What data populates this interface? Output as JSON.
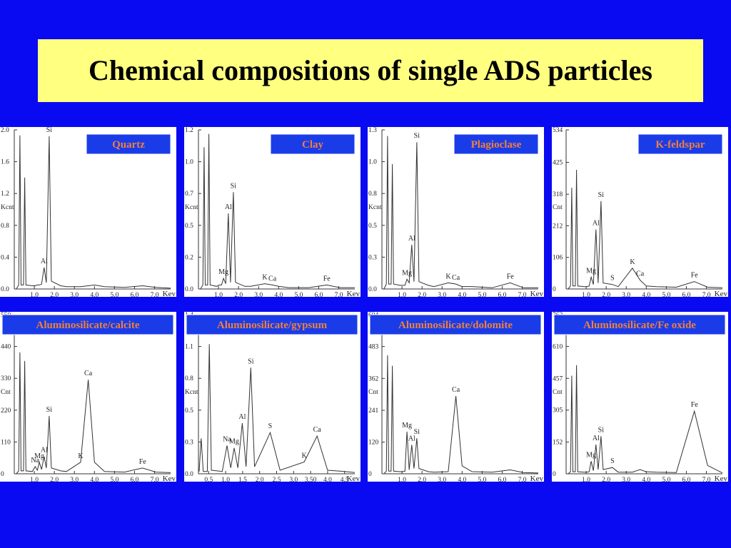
{
  "title": "Chemical compositions of single ADS particles",
  "chart_data": [
    {
      "type": "line",
      "title": "Quartz",
      "y_label": "Kcnt",
      "x_label": "Kev",
      "color": "#333333",
      "x": [
        0.1,
        0.22,
        0.28,
        0.34,
        0.46,
        0.52,
        0.58,
        0.9,
        1.04,
        1.15,
        1.25,
        1.36,
        1.49,
        1.6,
        1.74,
        1.85,
        2.31,
        2.6,
        3.31,
        3.69,
        4.0,
        4.5,
        5.5,
        6.4,
        7.06,
        7.8
      ],
      "values": [
        0,
        0.05,
        1.93,
        0.05,
        0.05,
        1.4,
        0.05,
        0.04,
        0.04,
        0.05,
        0.05,
        0.06,
        0.27,
        0.08,
        1.92,
        0.1,
        0.04,
        0.03,
        0.03,
        0.04,
        0.05,
        0.03,
        0.02,
        0.04,
        0.02,
        0.01
      ],
      "xlim": [
        0,
        7.8
      ],
      "ylim": [
        0,
        2.0
      ],
      "xticks": [
        {
          "value": 1,
          "label": "1.0"
        },
        {
          "value": 2,
          "label": "2.0"
        },
        {
          "value": 3,
          "label": "3.0"
        },
        {
          "value": 4,
          "label": "4.0"
        },
        {
          "value": 5,
          "label": "5.0"
        },
        {
          "value": 6,
          "label": "6.0"
        },
        {
          "value": 7,
          "label": "7.0"
        }
      ],
      "yticks": [
        {
          "value": 0,
          "label": "0.0"
        },
        {
          "value": 0.4,
          "label": "0.4"
        },
        {
          "value": 0.8,
          "label": "0.8"
        },
        {
          "value": 1.2,
          "label": "1.2"
        },
        {
          "value": 1.6,
          "label": "1.6"
        },
        {
          "value": 2.0,
          "label": "2.0"
        }
      ],
      "annotations": [
        "Si",
        "Al"
      ]
    },
    {
      "type": "line",
      "title": "Clay",
      "y_label": "Kcnt",
      "x_label": "Kev",
      "color": "#333333",
      "x": [
        0.1,
        0.22,
        0.28,
        0.34,
        0.46,
        0.52,
        0.58,
        0.9,
        1.04,
        1.15,
        1.25,
        1.36,
        1.49,
        1.6,
        1.74,
        1.85,
        2.31,
        2.6,
        3.31,
        3.69,
        4.0,
        4.5,
        5.5,
        6.4,
        7.06,
        7.8
      ],
      "values": [
        0,
        0.03,
        1.07,
        0.03,
        0.03,
        1.17,
        0.03,
        0.02,
        0.03,
        0.03,
        0.08,
        0.04,
        0.57,
        0.05,
        0.73,
        0.05,
        0.02,
        0.02,
        0.04,
        0.03,
        0.02,
        0.01,
        0.01,
        0.03,
        0.01,
        0.01
      ],
      "xlim": [
        0,
        7.8
      ],
      "ylim": [
        0,
        1.2
      ],
      "xticks": [
        {
          "value": 1,
          "label": "1.0"
        },
        {
          "value": 2,
          "label": "2.0"
        },
        {
          "value": 3,
          "label": "3.0"
        },
        {
          "value": 4,
          "label": "4.0"
        },
        {
          "value": 5,
          "label": "5.0"
        },
        {
          "value": 6,
          "label": "6.0"
        },
        {
          "value": 7,
          "label": "7.0"
        }
      ],
      "yticks": [
        {
          "value": 0,
          "label": "0.0"
        },
        {
          "value": 0.24,
          "label": "0.2"
        },
        {
          "value": 0.48,
          "label": "0.5"
        },
        {
          "value": 0.72,
          "label": "0.7"
        },
        {
          "value": 0.96,
          "label": "1.0"
        },
        {
          "value": 1.2,
          "label": "1.2"
        }
      ],
      "annotations": [
        "Si",
        "Al",
        "Mg",
        "K",
        "Ca",
        "Fe"
      ]
    },
    {
      "type": "line",
      "title": "Plagioclase",
      "y_label": "Kcnt",
      "x_label": "Kev",
      "color": "#333333",
      "x": [
        0.1,
        0.22,
        0.28,
        0.34,
        0.46,
        0.52,
        0.58,
        0.9,
        1.04,
        1.15,
        1.25,
        1.36,
        1.49,
        1.6,
        1.74,
        1.85,
        2.31,
        2.6,
        3.31,
        3.69,
        4.0,
        4.5,
        5.5,
        6.4,
        7.06,
        7.8
      ],
      "values": [
        0,
        0.04,
        1.25,
        0.04,
        0.04,
        1.02,
        0.04,
        0.03,
        0.03,
        0.03,
        0.08,
        0.05,
        0.36,
        0.06,
        1.2,
        0.06,
        0.03,
        0.02,
        0.05,
        0.04,
        0.02,
        0.02,
        0.01,
        0.05,
        0.01,
        0.01
      ],
      "xlim": [
        0,
        7.8
      ],
      "ylim": [
        0,
        1.3
      ],
      "xticks": [
        {
          "value": 1,
          "label": "1.0"
        },
        {
          "value": 2,
          "label": "2.0"
        },
        {
          "value": 3,
          "label": "3.0"
        },
        {
          "value": 4,
          "label": "4.0"
        },
        {
          "value": 5,
          "label": "5.0"
        },
        {
          "value": 6,
          "label": "6.0"
        },
        {
          "value": 7,
          "label": "7.0"
        }
      ],
      "yticks": [
        {
          "value": 0,
          "label": "0.0"
        },
        {
          "value": 0.26,
          "label": "0.3"
        },
        {
          "value": 0.52,
          "label": "0.5"
        },
        {
          "value": 0.78,
          "label": "0.8"
        },
        {
          "value": 1.04,
          "label": "1.0"
        },
        {
          "value": 1.3,
          "label": "1.3"
        }
      ],
      "annotations": [
        "Si",
        "Al",
        "Mg",
        "K",
        "Ca",
        "Fe"
      ]
    },
    {
      "type": "line",
      "title": "K-feldspar",
      "y_label": "Cnt",
      "x_label": "Kev",
      "color": "#333333",
      "x": [
        0.1,
        0.22,
        0.28,
        0.34,
        0.46,
        0.52,
        0.58,
        0.9,
        1.04,
        1.15,
        1.25,
        1.36,
        1.49,
        1.6,
        1.74,
        1.85,
        2.31,
        2.6,
        3.31,
        3.69,
        4.0,
        4.5,
        5.5,
        6.4,
        7.06,
        7.8
      ],
      "values": [
        0,
        10,
        340,
        10,
        10,
        400,
        10,
        8,
        8,
        10,
        40,
        15,
        200,
        20,
        295,
        20,
        15,
        8,
        70,
        30,
        10,
        8,
        6,
        25,
        6,
        4
      ],
      "xlim": [
        0,
        7.8
      ],
      "ylim": [
        0,
        534
      ],
      "xticks": [
        {
          "value": 1,
          "label": "1.0"
        },
        {
          "value": 2,
          "label": "2.0"
        },
        {
          "value": 3,
          "label": "3.0"
        },
        {
          "value": 4,
          "label": "4.0"
        },
        {
          "value": 5,
          "label": "5.0"
        },
        {
          "value": 6,
          "label": "6.0"
        },
        {
          "value": 7,
          "label": "7.0"
        }
      ],
      "yticks": [
        0,
        106,
        212,
        318,
        425,
        534
      ],
      "annotations": [
        "Si",
        "Al",
        "Mg",
        "S",
        "K",
        "Ca",
        "Fe"
      ]
    },
    {
      "type": "line",
      "title": "Aluminosilicate/calcite",
      "y_label": "Cnt",
      "x_label": "Kev",
      "color": "#333333",
      "x": [
        0.1,
        0.22,
        0.28,
        0.34,
        0.46,
        0.52,
        0.58,
        0.9,
        1.04,
        1.15,
        1.25,
        1.36,
        1.49,
        1.6,
        1.74,
        1.85,
        2.31,
        2.6,
        3.31,
        3.69,
        4.0,
        4.5,
        5.5,
        6.4,
        7.06,
        7.8
      ],
      "values": [
        0,
        10,
        420,
        10,
        10,
        390,
        10,
        8,
        25,
        12,
        40,
        15,
        60,
        20,
        200,
        20,
        10,
        8,
        40,
        325,
        40,
        8,
        6,
        20,
        6,
        4
      ],
      "xlim": [
        0,
        7.8
      ],
      "ylim": [
        0,
        550
      ],
      "xticks": [
        {
          "value": 1,
          "label": "1.0"
        },
        {
          "value": 2,
          "label": "2.0"
        },
        {
          "value": 3,
          "label": "3.0"
        },
        {
          "value": 4,
          "label": "4.0"
        },
        {
          "value": 5,
          "label": "5.0"
        },
        {
          "value": 6,
          "label": "6.0"
        },
        {
          "value": 7,
          "label": "7.0"
        }
      ],
      "yticks": [
        0,
        110,
        220,
        330,
        440,
        550
      ],
      "annotations": [
        "Ca",
        "Si",
        "Al",
        "Mg",
        "Na",
        "K",
        "Fe"
      ]
    },
    {
      "type": "line",
      "title": "Aluminosilicate/gypsum",
      "y_label": "Kcnt",
      "x_label": "Kev",
      "color": "#333333",
      "x": [
        0.22,
        0.28,
        0.34,
        0.46,
        0.52,
        0.58,
        0.9,
        1.04,
        1.15,
        1.25,
        1.36,
        1.49,
        1.6,
        1.74,
        1.85,
        2.31,
        2.6,
        3.31,
        3.69,
        4.0,
        4.5,
        4.8
      ],
      "values": [
        0.02,
        0.3,
        0.02,
        0.02,
        1.1,
        0.03,
        0.02,
        0.24,
        0.05,
        0.22,
        0.05,
        0.43,
        0.06,
        0.9,
        0.06,
        0.35,
        0.03,
        0.1,
        0.32,
        0.03,
        0.02,
        0.01
      ],
      "xlim": [
        0.2,
        4.8
      ],
      "ylim": [
        0,
        1.35
      ],
      "xticks": [
        {
          "value": 0.5,
          "label": "0.5"
        },
        {
          "value": 1,
          "label": "1.0"
        },
        {
          "value": 1.5,
          "label": "1.5"
        },
        {
          "value": 2,
          "label": "2.0"
        },
        {
          "value": 2.5,
          "label": "2.5"
        },
        {
          "value": 3,
          "label": "3.0"
        },
        {
          "value": 3.5,
          "label": "3.50"
        },
        {
          "value": 4,
          "label": "4.0"
        },
        {
          "value": 4.5,
          "label": "4.5"
        }
      ],
      "yticks": [
        {
          "value": 0,
          "label": "0.0"
        },
        {
          "value": 0.27,
          "label": "0.3"
        },
        {
          "value": 0.54,
          "label": "0.5"
        },
        {
          "value": 0.81,
          "label": "0.8"
        },
        {
          "value": 1.08,
          "label": "1.1"
        },
        {
          "value": 1.35,
          "label": "1.4"
        }
      ],
      "annotations": [
        "Si",
        "Al",
        "S",
        "Na",
        "Mg",
        "Ca",
        "K"
      ]
    },
    {
      "type": "line",
      "title": "Aluminosilicate/dolomite",
      "y_label": "Cnt",
      "x_label": "Kev",
      "color": "#333333",
      "x": [
        0.1,
        0.22,
        0.28,
        0.34,
        0.46,
        0.52,
        0.58,
        0.9,
        1.04,
        1.15,
        1.25,
        1.36,
        1.49,
        1.6,
        1.74,
        1.85,
        2.31,
        2.6,
        3.31,
        3.69,
        4.0,
        4.5,
        5.5,
        6.4,
        7.06,
        7.8
      ],
      "values": [
        0,
        10,
        450,
        10,
        10,
        410,
        10,
        8,
        8,
        10,
        160,
        15,
        110,
        20,
        135,
        20,
        8,
        6,
        8,
        295,
        30,
        8,
        6,
        15,
        5,
        3
      ],
      "xlim": [
        0,
        7.8
      ],
      "ylim": [
        0,
        604
      ],
      "xticks": [
        {
          "value": 1,
          "label": "1.0"
        },
        {
          "value": 2,
          "label": "2.0"
        },
        {
          "value": 3,
          "label": "3.0"
        },
        {
          "value": 4,
          "label": "4.0"
        },
        {
          "value": 5,
          "label": "5.0"
        },
        {
          "value": 6,
          "label": "6.0"
        },
        {
          "value": 7,
          "label": "7.0"
        }
      ],
      "yticks": [
        0,
        120,
        241,
        362,
        483,
        604
      ],
      "annotations": [
        "Ca",
        "Mg",
        "Si",
        "Al"
      ]
    },
    {
      "type": "line",
      "title": "Aluminosilicate/Fe oxide",
      "y_label": "Cnt",
      "x_label": "Kev",
      "color": "#333333",
      "x": [
        0.1,
        0.22,
        0.28,
        0.34,
        0.46,
        0.52,
        0.58,
        0.9,
        1.04,
        1.15,
        1.25,
        1.36,
        1.49,
        1.6,
        1.74,
        1.85,
        2.31,
        2.6,
        3.31,
        3.69,
        4.0,
        4.5,
        5.5,
        6.4,
        7.06,
        7.8
      ],
      "values": [
        0,
        10,
        470,
        10,
        10,
        520,
        10,
        8,
        8,
        10,
        60,
        15,
        140,
        20,
        180,
        20,
        30,
        8,
        8,
        20,
        10,
        8,
        6,
        300,
        40,
        4
      ],
      "xlim": [
        0,
        7.8
      ],
      "ylim": [
        0,
        762
      ],
      "xticks": [
        {
          "value": 1,
          "label": "1.0"
        },
        {
          "value": 2,
          "label": "2.0"
        },
        {
          "value": 3,
          "label": "3.0"
        },
        {
          "value": 4,
          "label": "4.0"
        },
        {
          "value": 5,
          "label": "5.0"
        },
        {
          "value": 6,
          "label": "6.0"
        },
        {
          "value": 7,
          "label": "7.0"
        }
      ],
      "yticks": [
        0,
        152,
        305,
        457,
        610,
        762
      ],
      "annotations": [
        "Fe",
        "Si",
        "Al",
        "Mg",
        "S"
      ]
    }
  ]
}
